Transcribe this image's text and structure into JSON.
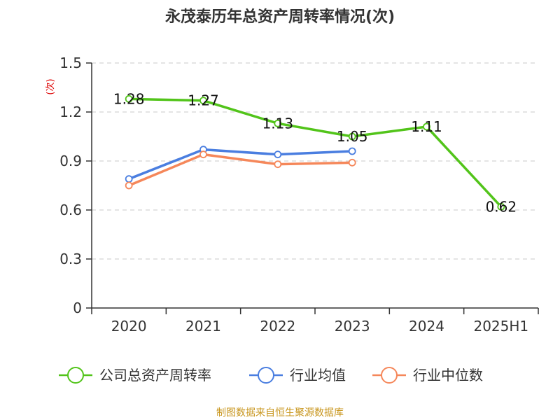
{
  "title": "永茂泰历年总资产周转率情况(次)",
  "source_note": "制图数据来自恒生聚源数据库",
  "chart_data": {
    "type": "line",
    "title": "永茂泰历年总资产周转率情况(次)",
    "ylabel": "(次)",
    "xlabel": "",
    "categories": [
      "2020",
      "2021",
      "2022",
      "2023",
      "2024",
      "2025H1"
    ],
    "ylim": [
      0,
      1.5
    ],
    "yticks": [
      0,
      0.3,
      0.6,
      0.9,
      1.2,
      1.5
    ],
    "ytick_labels": [
      "0",
      "0.3",
      "0.6",
      "0.9",
      "1.2",
      "1.5"
    ],
    "grid": true,
    "legend_position": "bottom",
    "series": [
      {
        "name": "公司总资产周转率",
        "color": "#52c41a",
        "values": [
          1.28,
          1.27,
          1.13,
          1.05,
          1.11,
          0.62
        ],
        "data_labels": [
          "1.28",
          "1.27",
          "1.13",
          "1.05",
          "1.11",
          "0.62"
        ]
      },
      {
        "name": "行业均值",
        "color": "#4a7ee0",
        "values": [
          0.79,
          0.97,
          0.94,
          0.96,
          null,
          null
        ]
      },
      {
        "name": "行业中位数",
        "color": "#f5875a",
        "values": [
          0.75,
          0.94,
          0.88,
          0.89,
          null,
          null
        ]
      }
    ]
  }
}
